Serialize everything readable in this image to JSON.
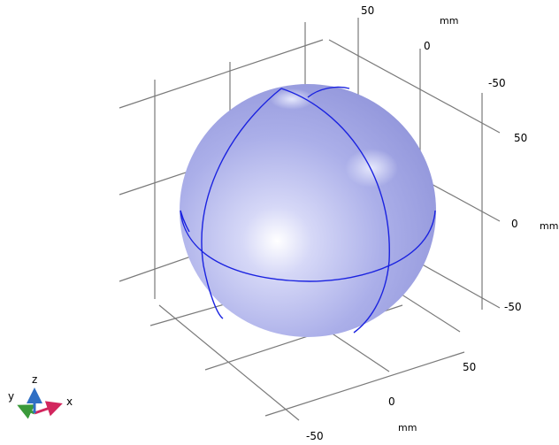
{
  "axis_units": {
    "top": "mm",
    "right": "mm",
    "bottom": "mm"
  },
  "ticks": {
    "top": [
      "50",
      "0",
      "-50"
    ],
    "right": [
      "50",
      "0",
      "-50"
    ],
    "bottom": [
      "50",
      "0",
      "-50"
    ]
  },
  "triad": {
    "x": "x",
    "y": "y",
    "z": "z"
  },
  "colors": {
    "grid": "#7a7a7a",
    "sphere_fill": "#a7abe8",
    "sphere_edge": "#1a22e0",
    "triad_x": "#d2265e",
    "triad_y": "#3a9a3a",
    "triad_z": "#2f6fc4"
  },
  "scene": {
    "object": "sphere",
    "icon": "sphere-geometry-icon"
  }
}
